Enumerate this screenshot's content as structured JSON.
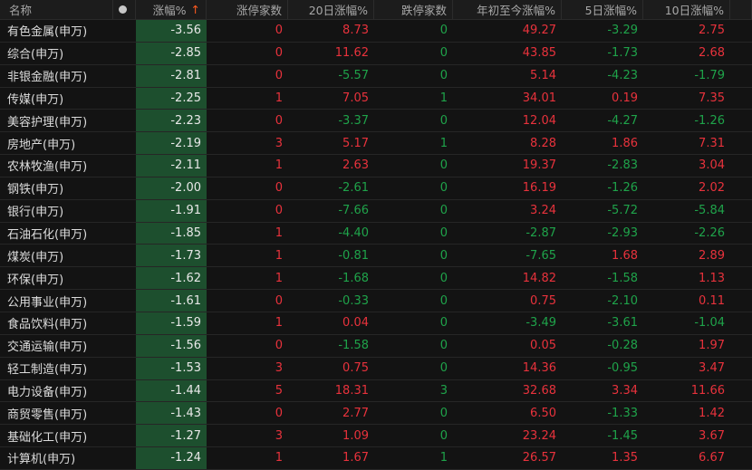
{
  "header": {
    "name": "名称",
    "change": "涨幅%",
    "sort_arrow": "↑",
    "limit_up": "涨停家数",
    "d20": "20日涨幅%",
    "limit_down": "跌停家数",
    "ytd": "年初至今涨幅%",
    "d5": "5日涨幅%",
    "d10": "10日涨幅%"
  },
  "colors": {
    "up": "#e8323c",
    "down": "#1fa34a",
    "highlight_column": "#1d4f2e"
  },
  "rows": [
    {
      "name": "有色金属(申万)",
      "change": "-3.56",
      "limit_up": "0",
      "d20": "8.73",
      "limit_down": "0",
      "ytd": "49.27",
      "d5": "-3.29",
      "d10": "2.75"
    },
    {
      "name": "综合(申万)",
      "change": "-2.85",
      "limit_up": "0",
      "d20": "11.62",
      "limit_down": "0",
      "ytd": "43.85",
      "d5": "-1.73",
      "d10": "2.68"
    },
    {
      "name": "非银金融(申万)",
      "change": "-2.81",
      "limit_up": "0",
      "d20": "-5.57",
      "limit_down": "0",
      "ytd": "5.14",
      "d5": "-4.23",
      "d10": "-1.79"
    },
    {
      "name": "传媒(申万)",
      "change": "-2.25",
      "limit_up": "1",
      "d20": "7.05",
      "limit_down": "1",
      "ytd": "34.01",
      "d5": "0.19",
      "d10": "7.35"
    },
    {
      "name": "美容护理(申万)",
      "change": "-2.23",
      "limit_up": "0",
      "d20": "-3.37",
      "limit_down": "0",
      "ytd": "12.04",
      "d5": "-4.27",
      "d10": "-1.26"
    },
    {
      "name": "房地产(申万)",
      "change": "-2.19",
      "limit_up": "3",
      "d20": "5.17",
      "limit_down": "1",
      "ytd": "8.28",
      "d5": "1.86",
      "d10": "7.31"
    },
    {
      "name": "农林牧渔(申万)",
      "change": "-2.11",
      "limit_up": "1",
      "d20": "2.63",
      "limit_down": "0",
      "ytd": "19.37",
      "d5": "-2.83",
      "d10": "3.04"
    },
    {
      "name": "钢铁(申万)",
      "change": "-2.00",
      "limit_up": "0",
      "d20": "-2.61",
      "limit_down": "0",
      "ytd": "16.19",
      "d5": "-1.26",
      "d10": "2.02"
    },
    {
      "name": "银行(申万)",
      "change": "-1.91",
      "limit_up": "0",
      "d20": "-7.66",
      "limit_down": "0",
      "ytd": "3.24",
      "d5": "-5.72",
      "d10": "-5.84"
    },
    {
      "name": "石油石化(申万)",
      "change": "-1.85",
      "limit_up": "1",
      "d20": "-4.40",
      "limit_down": "0",
      "ytd": "-2.87",
      "d5": "-2.93",
      "d10": "-2.26"
    },
    {
      "name": "煤炭(申万)",
      "change": "-1.73",
      "limit_up": "1",
      "d20": "-0.81",
      "limit_down": "0",
      "ytd": "-7.65",
      "d5": "1.68",
      "d10": "2.89"
    },
    {
      "name": "环保(申万)",
      "change": "-1.62",
      "limit_up": "1",
      "d20": "-1.68",
      "limit_down": "0",
      "ytd": "14.82",
      "d5": "-1.58",
      "d10": "1.13"
    },
    {
      "name": "公用事业(申万)",
      "change": "-1.61",
      "limit_up": "0",
      "d20": "-0.33",
      "limit_down": "0",
      "ytd": "0.75",
      "d5": "-2.10",
      "d10": "0.11"
    },
    {
      "name": "食品饮料(申万)",
      "change": "-1.59",
      "limit_up": "1",
      "d20": "0.04",
      "limit_down": "0",
      "ytd": "-3.49",
      "d5": "-3.61",
      "d10": "-1.04"
    },
    {
      "name": "交通运输(申万)",
      "change": "-1.56",
      "limit_up": "0",
      "d20": "-1.58",
      "limit_down": "0",
      "ytd": "0.05",
      "d5": "-0.28",
      "d10": "1.97"
    },
    {
      "name": "轻工制造(申万)",
      "change": "-1.53",
      "limit_up": "3",
      "d20": "0.75",
      "limit_down": "0",
      "ytd": "14.36",
      "d5": "-0.95",
      "d10": "3.47"
    },
    {
      "name": "电力设备(申万)",
      "change": "-1.44",
      "limit_up": "5",
      "d20": "18.31",
      "limit_down": "3",
      "ytd": "32.68",
      "d5": "3.34",
      "d10": "11.66"
    },
    {
      "name": "商贸零售(申万)",
      "change": "-1.43",
      "limit_up": "0",
      "d20": "2.77",
      "limit_down": "0",
      "ytd": "6.50",
      "d5": "-1.33",
      "d10": "1.42"
    },
    {
      "name": "基础化工(申万)",
      "change": "-1.27",
      "limit_up": "3",
      "d20": "1.09",
      "limit_down": "0",
      "ytd": "23.24",
      "d5": "-1.45",
      "d10": "3.67"
    },
    {
      "name": "计算机(申万)",
      "change": "-1.24",
      "limit_up": "1",
      "d20": "1.67",
      "limit_down": "1",
      "ytd": "26.57",
      "d5": "1.35",
      "d10": "6.67"
    }
  ]
}
